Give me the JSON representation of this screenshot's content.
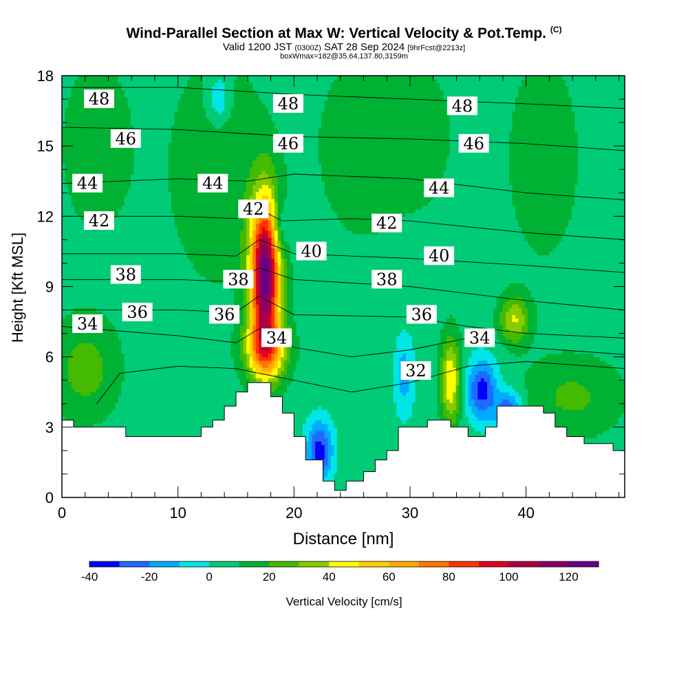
{
  "header": {
    "title": "Wind-Parallel Section at Max W: Vertical Velocity & Pot.Temp.",
    "title_mark": "(C)",
    "valid_prefix": "Valid 1200 JST",
    "valid_utc": "(0300Z)",
    "valid_date": "SAT 28 Sep 2024",
    "forecast": "[9hrFcst@2213z]",
    "box_info": "boxWmax=182@35.64,137.80,3159m"
  },
  "chart_data": {
    "type": "heatmap",
    "xlabel": "Distance [nm]",
    "ylabel": "Height [Kft MSL]",
    "xlim": [
      0,
      48.5
    ],
    "ylim": [
      0,
      18
    ],
    "x_ticks": [
      0,
      10,
      20,
      30,
      40
    ],
    "y_ticks": [
      0,
      3,
      6,
      9,
      12,
      15,
      18
    ],
    "colorbar": {
      "label": "Vertical Velocity [cm/s]",
      "min": -40,
      "max": 130,
      "tick_values": [
        -40,
        -20,
        0,
        20,
        40,
        60,
        80,
        100,
        120
      ],
      "tick_labels": [
        "-40",
        "-20",
        "0",
        "20",
        "40",
        "60",
        "80",
        "100",
        "120"
      ],
      "colors": [
        "#0000ff",
        "#1f6bff",
        "#00aaff",
        "#00e5e5",
        "#00cc77",
        "#00b233",
        "#44bb00",
        "#88cc00",
        "#ffff00",
        "#ffd000",
        "#ffaa00",
        "#ff7700",
        "#ff3300",
        "#dd0022",
        "#aa0044",
        "#880066",
        "#660088"
      ]
    },
    "background_value": 5,
    "velocity_features": [
      {
        "x": 17.5,
        "y": 9.5,
        "sx": 0.9,
        "sy": 2.3,
        "value": 125
      },
      {
        "x": 17.6,
        "y": 6.3,
        "sx": 1.3,
        "sy": 0.9,
        "value": 55
      },
      {
        "x": 33.5,
        "y": 5.0,
        "sx": 0.6,
        "sy": 1.3,
        "value": 50
      },
      {
        "x": 36.2,
        "y": 4.6,
        "sx": 0.9,
        "sy": 0.9,
        "value": -35
      },
      {
        "x": 38.5,
        "y": 3.7,
        "sx": 0.8,
        "sy": 0.6,
        "value": -30
      },
      {
        "x": 22.2,
        "y": 2.0,
        "sx": 0.8,
        "sy": 0.9,
        "value": -35
      },
      {
        "x": 29.5,
        "y": 5.2,
        "sx": 0.6,
        "sy": 1.2,
        "value": -15
      },
      {
        "x": 2.0,
        "y": 5.5,
        "sx": 2.0,
        "sy": 1.5,
        "value": 25
      },
      {
        "x": 44.0,
        "y": 4.3,
        "sx": 3.0,
        "sy": 1.2,
        "value": 22
      },
      {
        "x": 39.0,
        "y": 7.6,
        "sx": 0.9,
        "sy": 0.7,
        "value": 40
      },
      {
        "x": 13.5,
        "y": 14.0,
        "sx": 3.0,
        "sy": 3.5,
        "value": 18
      },
      {
        "x": 3.0,
        "y": 15.0,
        "sx": 2.5,
        "sy": 3.0,
        "value": 15
      },
      {
        "x": 26.0,
        "y": 15.0,
        "sx": 3.0,
        "sy": 3.0,
        "value": 16
      },
      {
        "x": 41.5,
        "y": 14.5,
        "sx": 2.5,
        "sy": 3.5,
        "value": 15
      },
      {
        "x": 31.5,
        "y": 15.5,
        "sx": 2.0,
        "sy": 2.5,
        "value": 12
      },
      {
        "x": 13.5,
        "y": 17.0,
        "sx": 0.7,
        "sy": 0.8,
        "value": -15
      },
      {
        "x": 18.8,
        "y": 11.5,
        "sx": 0.5,
        "sy": 0.8,
        "value": -15
      }
    ],
    "terrain": [
      [
        0,
        3.3
      ],
      [
        1,
        3.3
      ],
      [
        1,
        3.0
      ],
      [
        5.5,
        3.0
      ],
      [
        5.5,
        2.6
      ],
      [
        12,
        2.6
      ],
      [
        12,
        3.0
      ],
      [
        13,
        3.0
      ],
      [
        13,
        3.3
      ],
      [
        14,
        3.3
      ],
      [
        14,
        3.9
      ],
      [
        15,
        3.9
      ],
      [
        15,
        4.5
      ],
      [
        16,
        4.5
      ],
      [
        16,
        4.9
      ],
      [
        18,
        4.9
      ],
      [
        18,
        4.3
      ],
      [
        19,
        4.3
      ],
      [
        19,
        3.6
      ],
      [
        20,
        3.6
      ],
      [
        20,
        2.6
      ],
      [
        21,
        2.6
      ],
      [
        21,
        1.6
      ],
      [
        22.5,
        1.6
      ],
      [
        22.5,
        0.7
      ],
      [
        23.5,
        0.7
      ],
      [
        23.5,
        0.3
      ],
      [
        24.5,
        0.3
      ],
      [
        24.5,
        0.7
      ],
      [
        26,
        0.7
      ],
      [
        26,
        1.1
      ],
      [
        27,
        1.1
      ],
      [
        27,
        1.6
      ],
      [
        28,
        1.6
      ],
      [
        28,
        2.0
      ],
      [
        29,
        2.0
      ],
      [
        29,
        3.0
      ],
      [
        31.5,
        3.0
      ],
      [
        31.5,
        3.3
      ],
      [
        33.5,
        3.3
      ],
      [
        33.5,
        3.0
      ],
      [
        35,
        3.0
      ],
      [
        35,
        2.6
      ],
      [
        36.5,
        2.6
      ],
      [
        36.5,
        3.0
      ],
      [
        37.5,
        3.0
      ],
      [
        37.5,
        3.9
      ],
      [
        41.5,
        3.9
      ],
      [
        41.5,
        3.6
      ],
      [
        42.5,
        3.6
      ],
      [
        42.5,
        3.0
      ],
      [
        43.5,
        3.0
      ],
      [
        43.5,
        2.6
      ],
      [
        45,
        2.6
      ],
      [
        45,
        2.3
      ],
      [
        47.5,
        2.3
      ],
      [
        47.5,
        2.0
      ],
      [
        48.5,
        2.0
      ]
    ],
    "isentropes": [
      {
        "value": "48",
        "points": [
          [
            0,
            17.5
          ],
          [
            10,
            17.5
          ],
          [
            20,
            17.2
          ],
          [
            30,
            17.0
          ],
          [
            40,
            16.8
          ],
          [
            48.5,
            16.6
          ]
        ],
        "labels": [
          [
            3.2,
            17.0
          ],
          [
            19.5,
            16.8
          ],
          [
            34.5,
            16.7
          ]
        ]
      },
      {
        "value": "46",
        "points": [
          [
            0,
            15.8
          ],
          [
            10,
            15.7
          ],
          [
            20,
            15.4
          ],
          [
            30,
            15.3
          ],
          [
            40,
            15.1
          ],
          [
            48.5,
            14.8
          ]
        ],
        "labels": [
          [
            5.5,
            15.3
          ],
          [
            19.5,
            15.1
          ],
          [
            35.5,
            15.1
          ]
        ]
      },
      {
        "value": "44",
        "points": [
          [
            0,
            13.4
          ],
          [
            10,
            13.6
          ],
          [
            16,
            13.5
          ],
          [
            20,
            13.8
          ],
          [
            30,
            13.6
          ],
          [
            40,
            13.0
          ],
          [
            48.5,
            12.7
          ]
        ],
        "labels": [
          [
            2.2,
            13.4
          ],
          [
            13,
            13.4
          ],
          [
            32.5,
            13.2
          ]
        ]
      },
      {
        "value": "42",
        "points": [
          [
            0,
            12.0
          ],
          [
            10,
            12.0
          ],
          [
            15,
            11.9
          ],
          [
            17,
            12.3
          ],
          [
            19,
            11.8
          ],
          [
            25,
            11.9
          ],
          [
            30,
            11.8
          ],
          [
            40,
            11.3
          ],
          [
            48.5,
            11.0
          ]
        ],
        "labels": [
          [
            3.2,
            11.8
          ],
          [
            16.5,
            12.3
          ],
          [
            28,
            11.7
          ]
        ]
      },
      {
        "value": "40",
        "points": [
          [
            0,
            10.4
          ],
          [
            10,
            10.4
          ],
          [
            15,
            10.3
          ],
          [
            17,
            11.0
          ],
          [
            20,
            10.4
          ],
          [
            30,
            10.2
          ],
          [
            40,
            9.9
          ],
          [
            48.5,
            9.6
          ]
        ],
        "labels": [
          [
            21.5,
            10.5
          ],
          [
            32.5,
            10.3
          ]
        ]
      },
      {
        "value": "38",
        "points": [
          [
            0,
            9.3
          ],
          [
            10,
            9.3
          ],
          [
            15,
            9.2
          ],
          [
            17,
            9.8
          ],
          [
            20,
            9.3
          ],
          [
            30,
            9.0
          ],
          [
            40,
            8.4
          ],
          [
            48.5,
            8.0
          ]
        ],
        "labels": [
          [
            5.5,
            9.5
          ],
          [
            15.2,
            9.3
          ],
          [
            28,
            9.3
          ]
        ]
      },
      {
        "value": "36",
        "points": [
          [
            0,
            8.0
          ],
          [
            10,
            8.0
          ],
          [
            15,
            7.9
          ],
          [
            17,
            8.6
          ],
          [
            20,
            7.8
          ],
          [
            30,
            7.7
          ],
          [
            35,
            7.3
          ],
          [
            40,
            7.0
          ],
          [
            48.5,
            6.8
          ]
        ],
        "labels": [
          [
            6.5,
            7.9
          ],
          [
            14,
            7.8
          ],
          [
            31,
            7.8
          ]
        ]
      },
      {
        "value": "34",
        "points": [
          [
            0,
            7.3
          ],
          [
            10,
            6.9
          ],
          [
            15,
            6.6
          ],
          [
            17,
            7.2
          ],
          [
            20,
            6.4
          ],
          [
            25,
            6.0
          ],
          [
            30,
            6.3
          ],
          [
            35,
            6.8
          ],
          [
            40,
            6.4
          ],
          [
            48.5,
            6.1
          ]
        ],
        "labels": [
          [
            2.2,
            7.4
          ],
          [
            18.5,
            6.8
          ],
          [
            36,
            6.8
          ]
        ]
      },
      {
        "value": "32",
        "points": [
          [
            3,
            4.0
          ],
          [
            5,
            5.3
          ],
          [
            10,
            5.6
          ],
          [
            15,
            5.5
          ],
          [
            20,
            5.0
          ],
          [
            25,
            4.5
          ],
          [
            30,
            4.9
          ],
          [
            35,
            5.6
          ],
          [
            40,
            5.8
          ],
          [
            48.5,
            5.5
          ]
        ],
        "labels": [
          [
            30.5,
            5.4
          ]
        ]
      }
    ]
  }
}
